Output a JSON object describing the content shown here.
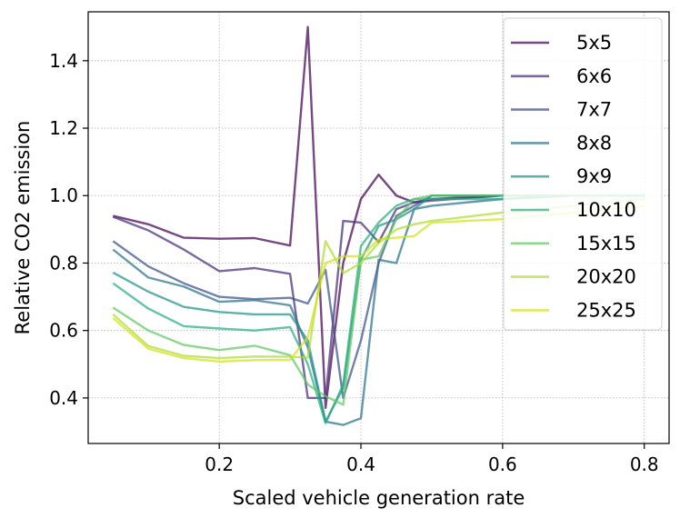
{
  "chart_data": {
    "type": "line",
    "title": "",
    "xlabel": "Scaled vehicle generation rate",
    "ylabel": "Relative CO2 emission",
    "xlim": [
      0.015,
      0.835
    ],
    "ylim": [
      0.265,
      1.545
    ],
    "xticks": [
      0.2,
      0.4,
      0.6,
      0.8
    ],
    "xtick_labels": [
      "0.2",
      "0.4",
      "0.6",
      "0.8"
    ],
    "yticks": [
      0.4,
      0.6,
      0.8,
      1.0,
      1.2,
      1.4
    ],
    "ytick_labels": [
      "0.4",
      "0.6",
      "0.8",
      "1.0",
      "1.2",
      "1.4"
    ],
    "grid": true,
    "legend_position": "upper-right",
    "x": [
      0.05,
      0.1,
      0.15,
      0.2,
      0.25,
      0.3,
      0.325,
      0.35,
      0.375,
      0.4,
      0.425,
      0.45,
      0.475,
      0.5,
      0.6,
      0.7,
      0.8
    ],
    "series": [
      {
        "name": "5x5",
        "color": "#440154",
        "values": [
          0.94,
          0.915,
          0.875,
          0.872,
          0.874,
          0.852,
          1.5,
          0.37,
          0.8,
          0.99,
          1.062,
          1.0,
          0.98,
          0.99,
          1.0,
          1.0,
          1.0
        ]
      },
      {
        "name": "6x6",
        "color": "#472d7b",
        "values": [
          0.937,
          0.897,
          0.84,
          0.776,
          0.785,
          0.768,
          0.4,
          0.4,
          0.925,
          0.92,
          0.862,
          0.96,
          0.98,
          0.985,
          1.0,
          1.0,
          1.0
        ]
      },
      {
        "name": "7x7",
        "color": "#3b528b",
        "values": [
          0.865,
          0.79,
          0.74,
          0.7,
          0.693,
          0.697,
          0.68,
          0.78,
          0.4,
          0.57,
          0.8,
          0.94,
          0.97,
          1.0,
          1.0,
          1.0,
          1.0
        ]
      },
      {
        "name": "8x8",
        "color": "#2c728e",
        "values": [
          0.84,
          0.757,
          0.73,
          0.685,
          0.69,
          0.675,
          0.55,
          0.33,
          0.32,
          0.34,
          0.81,
          0.8,
          0.96,
          0.97,
          0.99,
          1.0,
          1.0
        ]
      },
      {
        "name": "9x9",
        "color": "#21918c",
        "values": [
          0.772,
          0.715,
          0.67,
          0.655,
          0.648,
          0.648,
          0.57,
          0.33,
          0.43,
          0.81,
          0.91,
          0.93,
          0.96,
          1.0,
          1.0,
          1.0,
          1.0
        ]
      },
      {
        "name": "10x10",
        "color": "#28ae80",
        "values": [
          0.74,
          0.665,
          0.613,
          0.606,
          0.6,
          0.61,
          0.5,
          0.325,
          0.44,
          0.85,
          0.92,
          0.97,
          0.99,
          0.99,
          0.99,
          1.0,
          1.0
        ]
      },
      {
        "name": "15x15",
        "color": "#5ec962",
        "values": [
          0.668,
          0.6,
          0.557,
          0.542,
          0.555,
          0.527,
          0.44,
          0.405,
          0.38,
          0.81,
          0.82,
          0.93,
          0.99,
          1.0,
          1.0,
          1.0,
          1.0
        ]
      },
      {
        "name": "20x20",
        "color": "#addc30",
        "values": [
          0.648,
          0.554,
          0.525,
          0.518,
          0.523,
          0.522,
          0.52,
          0.865,
          0.77,
          0.8,
          0.86,
          0.9,
          0.915,
          0.925,
          0.95,
          0.97,
          0.99
        ]
      },
      {
        "name": "25x25",
        "color": "#d2e21b",
        "values": [
          0.637,
          0.546,
          0.518,
          0.508,
          0.512,
          0.513,
          0.58,
          0.8,
          0.82,
          0.82,
          0.87,
          0.875,
          0.88,
          0.92,
          0.93,
          0.95,
          0.97
        ]
      }
    ]
  }
}
